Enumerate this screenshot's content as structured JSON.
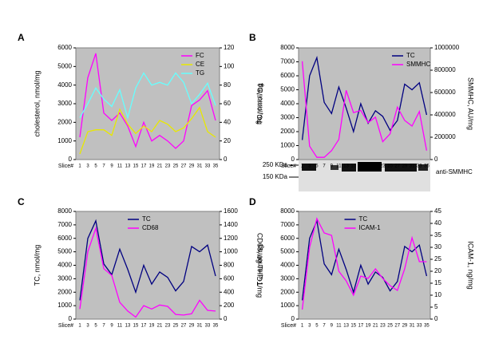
{
  "chart_data": [
    {
      "type": "line",
      "label": "A",
      "xlabel": "Slice#",
      "ylabel": "cholesterol, nmol/mg",
      "y2label": "TG, nmol/mg",
      "categories": [
        "1",
        "3",
        "5",
        "7",
        "9",
        "11",
        "13",
        "15",
        "17",
        "19",
        "21",
        "23",
        "25",
        "27",
        "29",
        "31",
        "33",
        "35"
      ],
      "ylim": [
        0,
        6000
      ],
      "yticks": [
        0,
        1000,
        2000,
        3000,
        4000,
        5000,
        6000
      ],
      "y2lim": [
        0,
        120
      ],
      "y2ticks": [
        0,
        20,
        40,
        60,
        80,
        100,
        120
      ],
      "legend": "upper right",
      "series": [
        {
          "name": "FC",
          "color": "#ff00ff",
          "values": [
            1200,
            4400,
            5700,
            2500,
            2100,
            2500,
            1800,
            700,
            2000,
            1000,
            1300,
            1000,
            600,
            1000,
            2900,
            3200,
            3700,
            2100
          ]
        },
        {
          "name": "CE",
          "color": "#e8e800",
          "values": [
            300,
            1500,
            1600,
            1600,
            1300,
            2700,
            1900,
            1400,
            1800,
            1500,
            2100,
            1900,
            1500,
            1700,
            2200,
            2800,
            1500,
            1200
          ]
        },
        {
          "name": "TG",
          "color": "#66ffff",
          "axis": "y2",
          "values": [
            45,
            60,
            77,
            65,
            57,
            75,
            45,
            77,
            93,
            80,
            83,
            80,
            93,
            83,
            60,
            70,
            82,
            58
          ]
        }
      ]
    },
    {
      "type": "line",
      "label": "B",
      "xlabel": "Slice#",
      "ylabel": "TC, nmol/mg",
      "y2label": "SMMHC, AU/mg",
      "categories": [
        "1",
        "3",
        "5",
        "7",
        "9",
        "11",
        "13",
        "15",
        "17",
        "19",
        "21",
        "23",
        "25",
        "27",
        "29",
        "31",
        "33",
        "35"
      ],
      "ylim": [
        0,
        8000
      ],
      "yticks": [
        0,
        1000,
        2000,
        3000,
        4000,
        5000,
        6000,
        7000,
        8000
      ],
      "y2lim": [
        0,
        1000000
      ],
      "y2ticks": [
        0,
        200000,
        400000,
        600000,
        800000,
        1000000
      ],
      "legend": "upper right",
      "series": [
        {
          "name": "TC",
          "color": "#000080",
          "values": [
            1400,
            6000,
            7300,
            4100,
            3300,
            5200,
            3700,
            2000,
            4000,
            2600,
            3500,
            3100,
            2100,
            2800,
            5400,
            5000,
            5500,
            3200
          ]
        },
        {
          "name": "SMMHC",
          "color": "#ff00ff",
          "axis": "y2",
          "values": [
            880000,
            120000,
            20000,
            20000,
            80000,
            180000,
            620000,
            420000,
            440000,
            330000,
            380000,
            160000,
            230000,
            470000,
            350000,
            300000,
            430000,
            80000
          ]
        }
      ]
    },
    {
      "type": "line",
      "label": "C",
      "xlabel": "Slice#",
      "ylabel": "TC, nmol/mg",
      "y2label": "CD68, ug THP-1/mg",
      "categories": [
        "1",
        "3",
        "5",
        "7",
        "9",
        "11",
        "13",
        "15",
        "17",
        "19",
        "21",
        "23",
        "25",
        "27",
        "29",
        "31",
        "33",
        "35"
      ],
      "ylim": [
        0,
        8000
      ],
      "yticks": [
        0,
        1000,
        2000,
        3000,
        4000,
        5000,
        6000,
        7000,
        8000
      ],
      "y2lim": [
        0,
        1600
      ],
      "y2ticks": [
        0,
        200,
        400,
        600,
        800,
        1000,
        1200,
        1400,
        1600
      ],
      "legend": "upper center",
      "series": [
        {
          "name": "TC",
          "color": "#000080",
          "values": [
            1400,
            6000,
            7300,
            4100,
            3300,
            5200,
            3700,
            2000,
            4000,
            2600,
            3500,
            3100,
            2100,
            2800,
            5400,
            5000,
            5500,
            3200
          ]
        },
        {
          "name": "CD68",
          "color": "#ff00ff",
          "axis": "y2",
          "values": [
            150,
            1000,
            1350,
            750,
            650,
            250,
            120,
            30,
            200,
            150,
            210,
            190,
            70,
            60,
            80,
            280,
            130,
            120
          ]
        }
      ]
    },
    {
      "type": "line",
      "label": "D",
      "xlabel": "Slice#",
      "ylabel": "TC, nmol/mg",
      "y2label": "ICAM-1, ng/mg",
      "categories": [
        "1",
        "3",
        "5",
        "7",
        "9",
        "11",
        "13",
        "15",
        "17",
        "19",
        "21",
        "23",
        "25",
        "27",
        "29",
        "31",
        "33",
        "35"
      ],
      "ylim": [
        0,
        8000
      ],
      "yticks": [
        0,
        1000,
        2000,
        3000,
        4000,
        5000,
        6000,
        7000,
        8000
      ],
      "y2lim": [
        0,
        45
      ],
      "y2ticks": [
        0,
        5,
        10,
        15,
        20,
        25,
        30,
        35,
        40,
        45
      ],
      "legend": "upper center",
      "series": [
        {
          "name": "TC",
          "color": "#000080",
          "values": [
            1400,
            6000,
            7300,
            4100,
            3300,
            5200,
            3700,
            2000,
            4000,
            2600,
            3500,
            3100,
            2100,
            2800,
            5400,
            5000,
            5500,
            3200
          ]
        },
        {
          "name": "ICAM-1",
          "color": "#ff00ff",
          "axis": "y2",
          "values": [
            4,
            30,
            42,
            36,
            35,
            20,
            16,
            10,
            18,
            17,
            21,
            17,
            14,
            12,
            21,
            34,
            24,
            24
          ]
        }
      ]
    }
  ],
  "blot": {
    "markers": [
      "250 KDa",
      "150 KDa"
    ],
    "antibody": "anti-SMMHC"
  }
}
